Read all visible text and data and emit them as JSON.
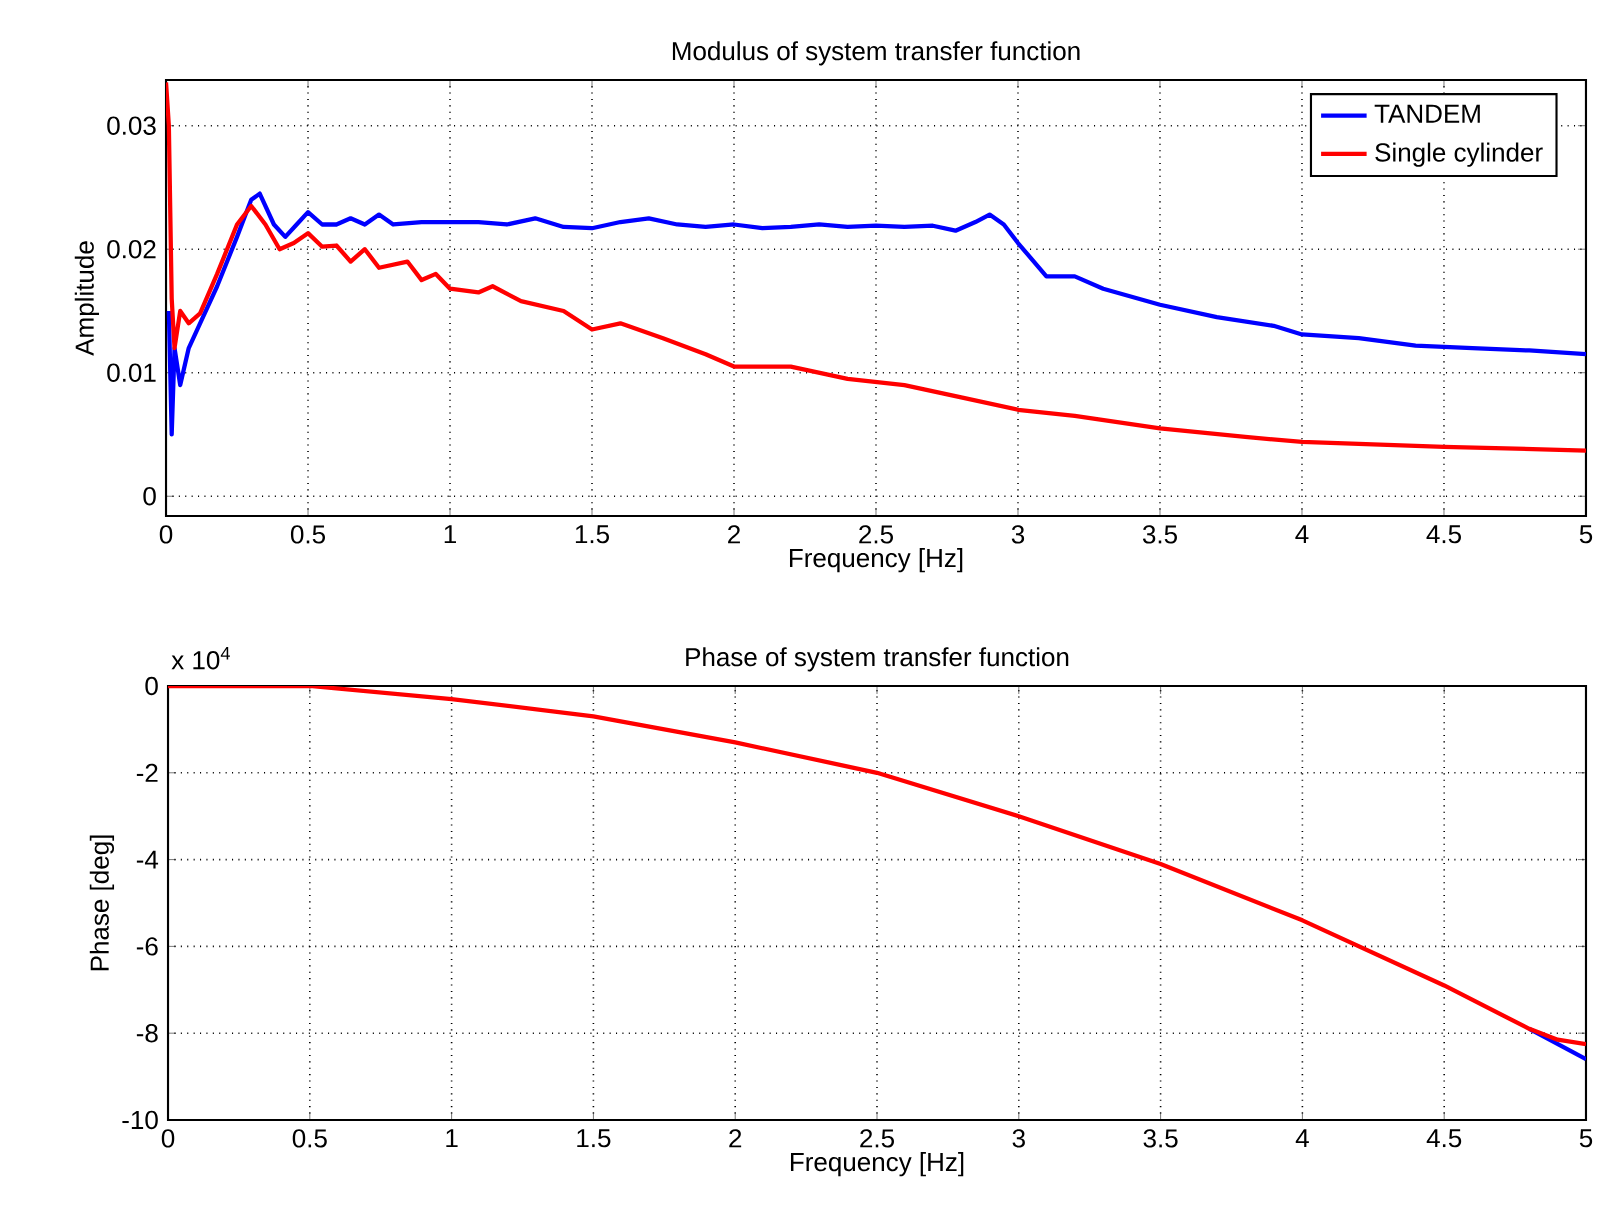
{
  "chart_data": [
    {
      "type": "line",
      "title": "Modulus of system transfer function",
      "xlabel": "Frequency [Hz]",
      "ylabel": "Amplitude",
      "xlim": [
        0,
        5
      ],
      "ylim": [
        -0.0016,
        0.0337
      ],
      "xticks": [
        0,
        0.5,
        1,
        1.5,
        2,
        2.5,
        3,
        3.5,
        4,
        4.5,
        5
      ],
      "yticks": [
        0,
        0.01,
        0.02,
        0.03
      ],
      "grid": true,
      "legend": "top right",
      "line_style": "solid",
      "marker": "none",
      "series": [
        {
          "name": "TANDEM",
          "color": "#0000ff",
          "x": [
            0.01,
            0.02,
            0.03,
            0.05,
            0.08,
            0.12,
            0.18,
            0.25,
            0.3,
            0.33,
            0.38,
            0.42,
            0.46,
            0.5,
            0.55,
            0.6,
            0.65,
            0.7,
            0.75,
            0.8,
            0.9,
            1.0,
            1.1,
            1.2,
            1.3,
            1.4,
            1.5,
            1.6,
            1.7,
            1.8,
            1.9,
            2.0,
            2.1,
            2.2,
            2.3,
            2.4,
            2.5,
            2.6,
            2.7,
            2.78,
            2.85,
            2.9,
            2.95,
            3.0,
            3.1,
            3.2,
            3.3,
            3.5,
            3.7,
            3.9,
            4.0,
            4.2,
            4.4,
            4.6,
            4.8,
            5.0
          ],
          "values": [
            0.015,
            0.005,
            0.012,
            0.009,
            0.012,
            0.014,
            0.017,
            0.021,
            0.024,
            0.0245,
            0.022,
            0.021,
            0.022,
            0.023,
            0.022,
            0.022,
            0.0225,
            0.022,
            0.0228,
            0.022,
            0.0222,
            0.0222,
            0.0222,
            0.022,
            0.0225,
            0.0218,
            0.0217,
            0.0222,
            0.0225,
            0.022,
            0.0218,
            0.022,
            0.0217,
            0.0218,
            0.022,
            0.0218,
            0.0219,
            0.0218,
            0.0219,
            0.0215,
            0.0222,
            0.0228,
            0.022,
            0.0205,
            0.0178,
            0.0178,
            0.0168,
            0.0155,
            0.0145,
            0.0138,
            0.0131,
            0.0128,
            0.0122,
            0.012,
            0.0118,
            0.0115
          ]
        },
        {
          "name": "Single cylinder",
          "color": "#ff0000",
          "x": [
            0,
            0.01,
            0.02,
            0.03,
            0.05,
            0.08,
            0.12,
            0.18,
            0.25,
            0.3,
            0.35,
            0.4,
            0.45,
            0.5,
            0.55,
            0.6,
            0.65,
            0.7,
            0.75,
            0.85,
            0.9,
            0.95,
            1.0,
            1.1,
            1.15,
            1.25,
            1.4,
            1.5,
            1.6,
            1.75,
            1.9,
            2.0,
            2.2,
            2.4,
            2.6,
            2.8,
            3.0,
            3.2,
            3.5,
            3.8,
            4.0,
            4.5,
            5.0
          ],
          "values": [
            0.0335,
            0.03,
            0.016,
            0.012,
            0.015,
            0.014,
            0.0148,
            0.018,
            0.022,
            0.0235,
            0.022,
            0.02,
            0.0205,
            0.0213,
            0.0202,
            0.0203,
            0.019,
            0.02,
            0.0185,
            0.019,
            0.0175,
            0.018,
            0.0168,
            0.0165,
            0.017,
            0.0158,
            0.015,
            0.0135,
            0.014,
            0.0128,
            0.0115,
            0.0105,
            0.0105,
            0.0095,
            0.009,
            0.008,
            0.007,
            0.0065,
            0.0055,
            0.0048,
            0.0044,
            0.004,
            0.0037
          ]
        }
      ]
    },
    {
      "type": "line",
      "title": "Phase of system transfer function",
      "xlabel": "Frequency [Hz]",
      "ylabel": "Phase [deg]",
      "xlim": [
        0,
        5
      ],
      "ylim": [
        -10,
        0
      ],
      "xticks": [
        0,
        0.5,
        1,
        1.5,
        2,
        2.5,
        3,
        3.5,
        4,
        4.5,
        5
      ],
      "yticks": [
        -10,
        -8,
        -6,
        -4,
        -2,
        0
      ],
      "annotations": [
        "x 10$^{4}$"
      ],
      "grid": true,
      "line_style": "solid",
      "marker": "none",
      "series": [
        {
          "color": "#0000ff",
          "x": [
            4.8,
            5
          ],
          "values": [
            -7.9,
            -8.6
          ]
        },
        {
          "color": "#ff0000",
          "x": [
            0,
            0.5,
            1,
            1.5,
            2,
            2.5,
            3,
            3.5,
            4,
            4.5,
            4.8,
            4.9,
            5
          ],
          "values": [
            0,
            0,
            -0.3,
            -0.7,
            -1.3,
            -2.0,
            -3.0,
            -4.1,
            -5.4,
            -6.9,
            -7.9,
            -8.15,
            -8.25
          ]
        }
      ]
    }
  ]
}
